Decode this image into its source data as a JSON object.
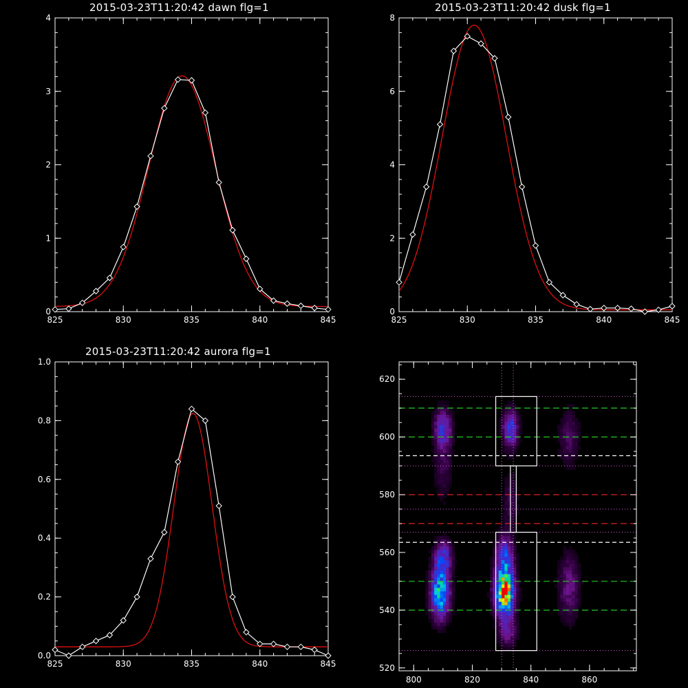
{
  "panels": {
    "dawn_title": "2015-03-23T11:20:42 dawn flg=1",
    "dusk_title": "2015-03-23T11:20:42 dusk flg=1",
    "aurora_title": "2015-03-23T11:20:42 aurora flg=1"
  },
  "colors": {
    "observed": "#ffffff",
    "fit": "#e01010",
    "green_line": "#22cc22",
    "red_line": "#dd2222",
    "white_line": "#ffffff",
    "dotted_line": "#e060e0"
  },
  "chart_data": [
    {
      "id": "dawn",
      "type": "line",
      "title": "2015-03-23T11:20:42 dawn flg=1",
      "xlim": [
        825,
        845
      ],
      "ylim": [
        0,
        4
      ],
      "xticks": [
        825,
        830,
        835,
        840,
        845
      ],
      "yticks": [
        0,
        1,
        2,
        3,
        4
      ],
      "series": [
        {
          "role": "observed",
          "marker": "diamond",
          "x": [
            825,
            826,
            827,
            828,
            829,
            830,
            831,
            832,
            833,
            834,
            835,
            836,
            837,
            838,
            839,
            840,
            841,
            842,
            843,
            844,
            845
          ],
          "y": [
            0.03,
            0.04,
            0.12,
            0.28,
            0.46,
            0.88,
            1.43,
            2.12,
            2.77,
            3.16,
            3.15,
            2.71,
            1.76,
            1.11,
            0.72,
            0.31,
            0.15,
            0.11,
            0.08,
            0.05,
            0.03
          ]
        },
        {
          "role": "fit",
          "type": "gaussian",
          "amplitude": 3.14,
          "center": 834.3,
          "sigma": 2.45,
          "offset": 0.07
        }
      ]
    },
    {
      "id": "dusk",
      "type": "line",
      "title": "2015-03-23T11:20:42 dusk flg=1",
      "xlim": [
        825,
        845
      ],
      "ylim": [
        0,
        8
      ],
      "xticks": [
        825,
        830,
        835,
        840,
        845
      ],
      "yticks": [
        0,
        2,
        4,
        6,
        8
      ],
      "series": [
        {
          "role": "observed",
          "marker": "diamond",
          "x": [
            825,
            826,
            827,
            828,
            829,
            830,
            831,
            832,
            833,
            834,
            835,
            836,
            837,
            838,
            839,
            840,
            841,
            842,
            843,
            844,
            845
          ],
          "y": [
            0.8,
            2.1,
            3.4,
            5.1,
            7.1,
            7.5,
            7.3,
            6.9,
            5.3,
            3.4,
            1.8,
            0.8,
            0.45,
            0.2,
            0.07,
            0.1,
            0.1,
            0.08,
            0.0,
            0.05,
            0.15
          ]
        },
        {
          "role": "fit",
          "type": "gaussian",
          "amplitude": 7.75,
          "center": 830.5,
          "sigma": 2.35,
          "offset": 0.05
        }
      ]
    },
    {
      "id": "aurora",
      "type": "line",
      "title": "2015-03-23T11:20:42 aurora flg=1",
      "xlim": [
        825,
        845
      ],
      "ylim": [
        0,
        1.0
      ],
      "xticks": [
        825,
        830,
        835,
        840,
        845
      ],
      "yticks": [
        0.0,
        0.2,
        0.4,
        0.6,
        0.8,
        1.0
      ],
      "series": [
        {
          "role": "observed",
          "marker": "diamond",
          "x": [
            825,
            826,
            827,
            828,
            829,
            830,
            831,
            832,
            833,
            834,
            835,
            836,
            837,
            838,
            839,
            840,
            841,
            842,
            843,
            844,
            845
          ],
          "y": [
            0.02,
            0.0,
            0.03,
            0.05,
            0.07,
            0.12,
            0.2,
            0.33,
            0.42,
            0.66,
            0.84,
            0.8,
            0.51,
            0.2,
            0.08,
            0.04,
            0.04,
            0.03,
            0.03,
            0.02,
            0.0
          ]
        },
        {
          "role": "fit",
          "type": "gaussian",
          "amplitude": 0.795,
          "center": 835.1,
          "sigma": 1.4,
          "offset": 0.03
        }
      ]
    },
    {
      "id": "image",
      "type": "heatmap",
      "xlim": [
        795,
        876
      ],
      "ylim": [
        519,
        626
      ],
      "xticks": [
        800,
        820,
        840,
        860
      ],
      "yticks": [
        520,
        540,
        560,
        580,
        600,
        620
      ],
      "blobs": [
        {
          "cx": 809,
          "cy": 546,
          "sx": 2.2,
          "sy": 6,
          "amp": 0.62
        },
        {
          "cx": 810,
          "cy": 558,
          "sx": 2.0,
          "sy": 4,
          "amp": 0.38
        },
        {
          "cx": 810,
          "cy": 603,
          "sx": 2.0,
          "sy": 4.5,
          "amp": 0.35
        },
        {
          "cx": 810,
          "cy": 590,
          "sx": 2.2,
          "sy": 8,
          "amp": 0.12
        },
        {
          "cx": 831,
          "cy": 546,
          "sx": 2.2,
          "sy": 5,
          "amp": 0.95
        },
        {
          "cx": 831,
          "cy": 558,
          "sx": 2.0,
          "sy": 5,
          "amp": 0.45
        },
        {
          "cx": 833,
          "cy": 603,
          "sx": 1.8,
          "sy": 4.5,
          "amp": 0.4
        },
        {
          "cx": 833,
          "cy": 578,
          "sx": 1.8,
          "sy": 7,
          "amp": 0.12
        },
        {
          "cx": 832,
          "cy": 533,
          "sx": 2.2,
          "sy": 4,
          "amp": 0.22
        },
        {
          "cx": 853,
          "cy": 548,
          "sx": 2.5,
          "sy": 8,
          "amp": 0.2
        },
        {
          "cx": 853,
          "cy": 600,
          "sx": 2.5,
          "sy": 7,
          "amp": 0.14
        }
      ],
      "boxes": [
        {
          "x0": 828,
          "x1": 842,
          "y0": 590,
          "y1": 614
        },
        {
          "x0": 828,
          "x1": 842,
          "y0": 526,
          "y1": 567
        }
      ],
      "connector": {
        "x0": 833,
        "x1": 835,
        "y0": 567,
        "y1": 590
      },
      "green_dashed_y": [
        610,
        600,
        550,
        540
      ],
      "red_dashed_y": [
        580,
        570
      ],
      "white_dashed_y": [
        593.5,
        563.5
      ],
      "dotted_h_y": [
        614,
        590,
        575,
        567,
        526
      ],
      "dotted_v_x": [
        830,
        834
      ]
    }
  ]
}
